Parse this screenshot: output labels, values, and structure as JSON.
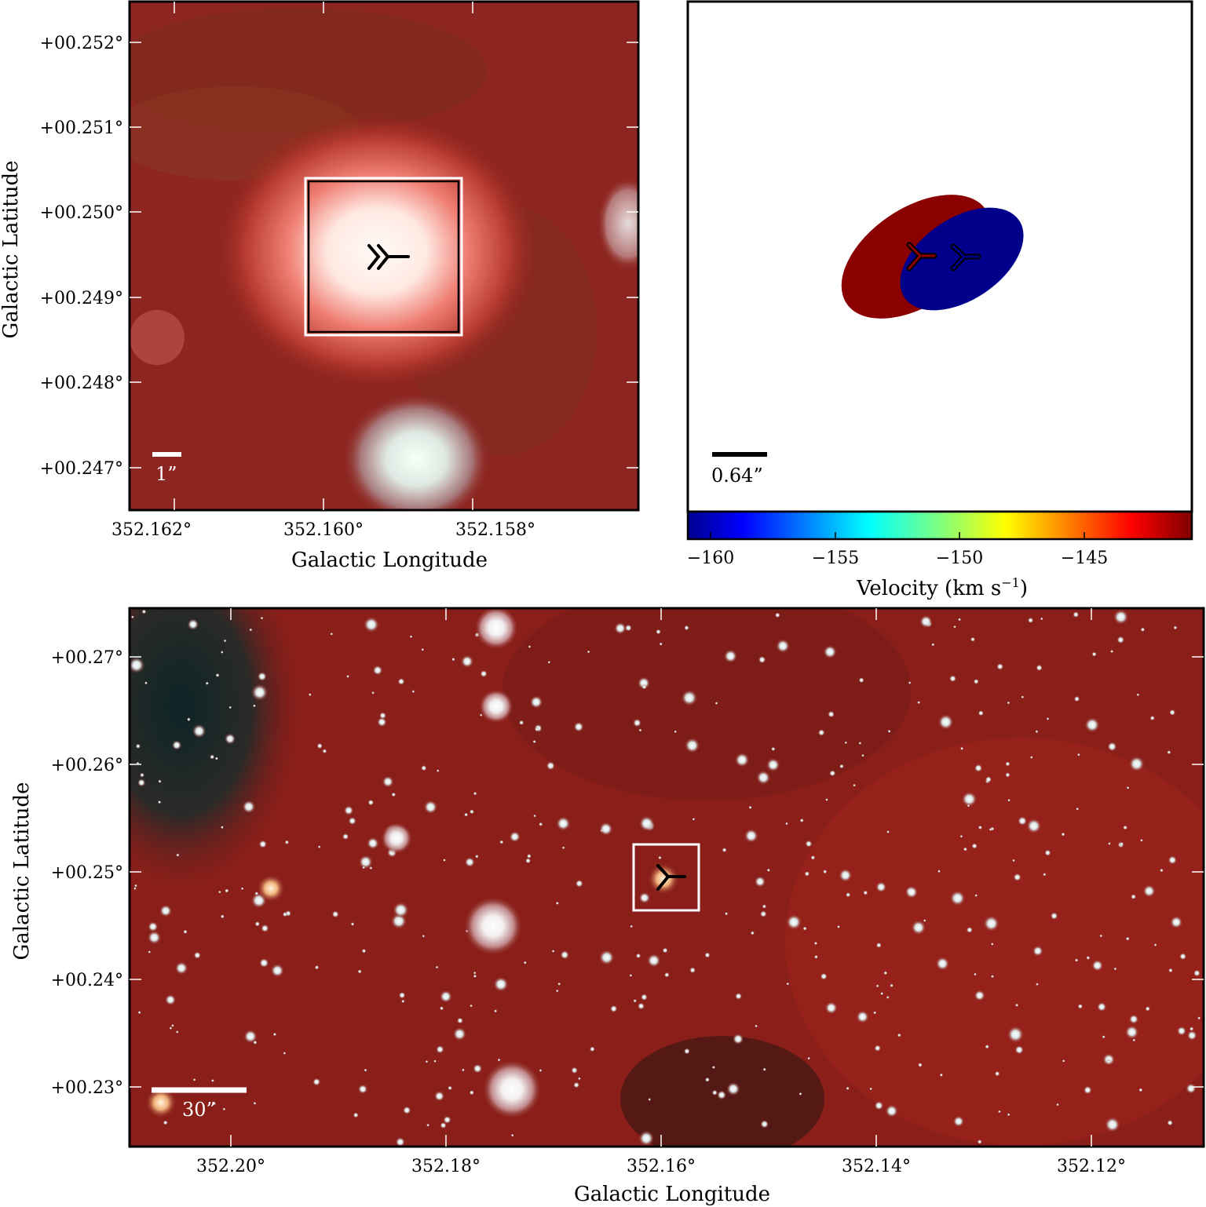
{
  "colors": {
    "dust_red": "#8a1f1a",
    "core_white": "#fff7f2",
    "red_lobe": "#8b0000",
    "blue_lobe": "#00008b",
    "frame": "#000000"
  },
  "panel_top_left": {
    "y_ticks": [
      "+00.252°",
      "+00.251°",
      "+00.250°",
      "+00.249°",
      "+00.248°",
      "+00.247°"
    ],
    "x_ticks": [
      "352.162°",
      "352.160°",
      "352.158°"
    ],
    "xlabel": "Galactic Longitude",
    "ylabel": "Galactic Latitude",
    "scale_bar_label": "1”",
    "marker_icon": "tri-marker-icon"
  },
  "panel_top_right": {
    "scale_bar_label": "0.64”",
    "colorbar": {
      "ticks": [
        "−160",
        "−155",
        "−150",
        "−145"
      ],
      "label": "Velocity (km s",
      "label_sup": "−1",
      "label_close": ")",
      "vmin": -161,
      "vmax": -141
    },
    "lobes": [
      {
        "name": "red",
        "velocity_hint": "redshifted"
      },
      {
        "name": "blue",
        "velocity_hint": "blueshifted"
      }
    ]
  },
  "panel_bottom": {
    "y_ticks": [
      "+00.27°",
      "+00.26°",
      "+00.25°",
      "+00.24°",
      "+00.23°"
    ],
    "x_ticks": [
      "352.20°",
      "352.18°",
      "352.16°",
      "352.14°",
      "352.12°"
    ],
    "xlabel": "Galactic Longitude",
    "ylabel": "Galactic Latitude",
    "scale_bar_label": "30”"
  }
}
